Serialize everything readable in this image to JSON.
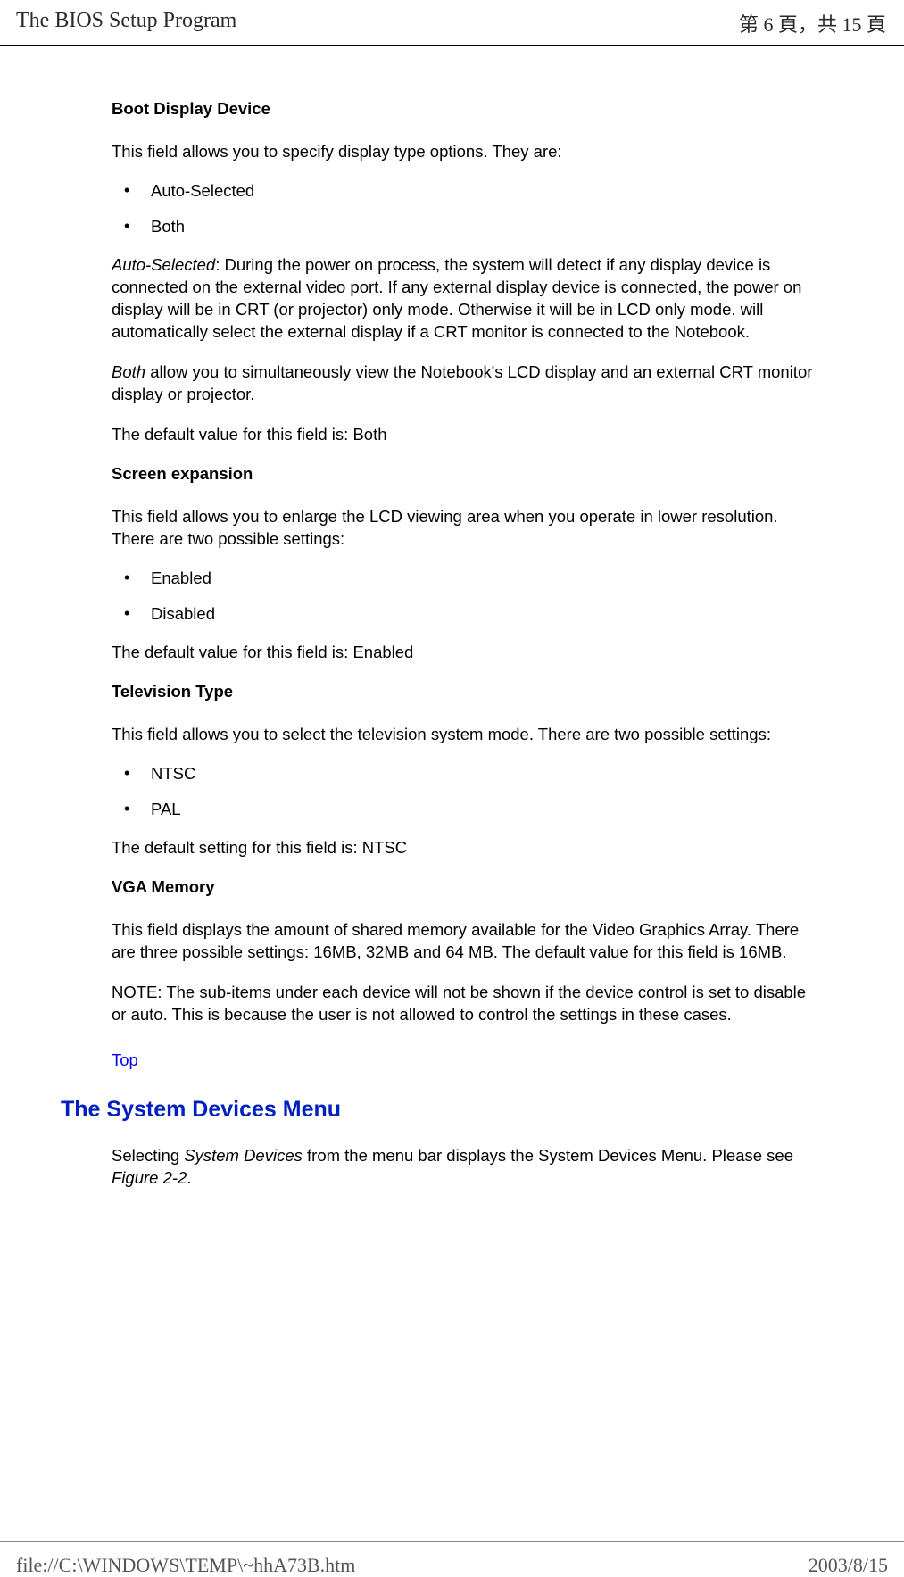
{
  "header": {
    "title": "The BIOS Setup Program",
    "page_indicator": "第 6 頁，共 15 頁"
  },
  "colors": {
    "text": "#000000",
    "link": "#0000ee",
    "h2": "#0020c0",
    "border": "#000000",
    "background": "#ffffff"
  },
  "section1": {
    "title": "Boot Display Device",
    "intro": "This field allows you to specify display type options. They are:",
    "options": [
      "Auto-Selected",
      "Both"
    ],
    "para1_label": "Auto-Selected",
    "para1_rest": ": During the power on process, the system will detect if any display device is connected on the external video port. If any external display device is connected, the power on display will be in CRT (or projector) only mode. Otherwise it will be in LCD only mode. will automatically select the external display if a CRT monitor is connected to the Notebook.",
    "para2_label": "Both",
    "para2_rest": " allow you to simultaneously view the Notebook's LCD display and an external CRT monitor display or projector.",
    "default_text": "The default value for this field is: Both"
  },
  "section2": {
    "title": "Screen expansion",
    "intro": "This field allows you to enlarge the LCD viewing area when you operate in lower resolution. There are two possible settings:",
    "options": [
      "Enabled",
      "Disabled"
    ],
    "default_text": "The default value for this field is: Enabled"
  },
  "section3": {
    "title": "Television Type",
    "intro": "This field allows you to select the television system mode. There are two possible settings:",
    "options": [
      "NTSC",
      "PAL"
    ],
    "default_text": "The default setting for this field is: NTSC"
  },
  "section4": {
    "title": "VGA Memory",
    "para1": "This field displays the amount of shared memory available for the Video Graphics Array. There are three possible settings: 16MB, 32MB and 64 MB. The default value for this field is 16MB.",
    "note": "NOTE: The sub-items under each device will not be shown if the device control is set to disable or auto. This is because the user is not allowed to control the settings in these cases."
  },
  "top_link_label": "Top",
  "h2_title": "The System Devices Menu",
  "h2_para_pre": "Selecting ",
  "h2_para_italic": "System Devices",
  "h2_para_mid": " from the menu bar displays the System Devices Menu. Please see ",
  "h2_para_fig": "Figure 2-2",
  "h2_para_end": ".",
  "footer": {
    "left": "file://C:\\WINDOWS\\TEMP\\~hhA73B.htm",
    "right": "2003/8/15"
  }
}
